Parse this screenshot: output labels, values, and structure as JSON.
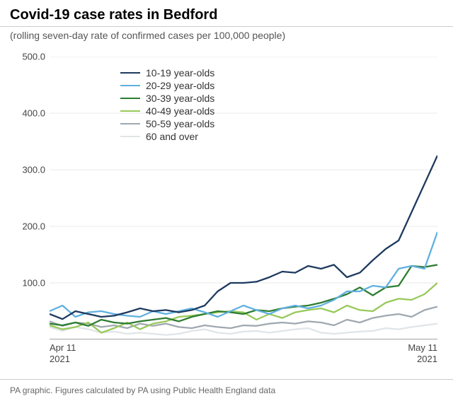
{
  "title": "Covid-19 case rates in Bedford",
  "subtitle": "(rolling seven-day rate of confirmed cases per 100,000 people)",
  "footer": "PA graphic. Figures calculated by PA using Public Health England data",
  "chart": {
    "type": "line",
    "background_color": "#ffffff",
    "grid_color": "#e8e8e8",
    "axis_color": "#444444",
    "title_fontsize": 20,
    "subtitle_fontsize": 14,
    "tick_fontsize": 13,
    "legend_fontsize": 14,
    "footer_fontsize": 12,
    "ylim": [
      0,
      500
    ],
    "yticks": [
      100.0,
      200.0,
      300.0,
      400.0,
      500.0
    ],
    "ytick_labels": [
      "100.0",
      "200.0",
      "300.0",
      "400.0",
      "500.0"
    ],
    "x_count": 31,
    "xtick_positions": [
      0,
      30
    ],
    "xtick_labels": [
      "Apr 11\n2021",
      "May 11\n2021"
    ],
    "line_width": 2.3,
    "series": [
      {
        "label": "10-19 year-olds",
        "color": "#1e3a5f",
        "values": [
          45,
          36,
          50,
          45,
          40,
          42,
          48,
          55,
          50,
          52,
          48,
          52,
          60,
          85,
          100,
          100,
          102,
          110,
          120,
          118,
          130,
          125,
          132,
          110,
          118,
          140,
          160,
          175,
          225,
          275,
          325
        ]
      },
      {
        "label": "20-29 year-olds",
        "color": "#5fb0e0",
        "values": [
          50,
          60,
          40,
          48,
          50,
          45,
          42,
          40,
          50,
          45,
          50,
          55,
          48,
          40,
          50,
          60,
          52,
          45,
          55,
          60,
          55,
          60,
          70,
          85,
          85,
          95,
          92,
          125,
          130,
          125,
          190
        ]
      },
      {
        "label": "30-39 year-olds",
        "color": "#2e7d32",
        "values": [
          28,
          25,
          30,
          24,
          35,
          30,
          28,
          32,
          35,
          38,
          32,
          40,
          45,
          50,
          48,
          45,
          52,
          50,
          55,
          58,
          60,
          65,
          72,
          80,
          92,
          78,
          92,
          95,
          130,
          128,
          132
        ]
      },
      {
        "label": "40-49 year-olds",
        "color": "#98c95a",
        "values": [
          25,
          18,
          22,
          30,
          12,
          20,
          30,
          18,
          28,
          32,
          40,
          42,
          45,
          48,
          50,
          48,
          35,
          45,
          38,
          48,
          52,
          55,
          48,
          60,
          52,
          50,
          65,
          72,
          70,
          80,
          100
        ]
      },
      {
        "label": "50-59 year-olds",
        "color": "#a0a8b0",
        "values": [
          32,
          24,
          30,
          28,
          22,
          25,
          20,
          28,
          24,
          28,
          22,
          20,
          25,
          22,
          20,
          25,
          24,
          28,
          30,
          28,
          32,
          30,
          25,
          35,
          30,
          38,
          42,
          45,
          40,
          52,
          58
        ]
      },
      {
        "label": "60 and over",
        "color": "#e0e5e8",
        "values": [
          22,
          15,
          22,
          18,
          12,
          14,
          10,
          12,
          10,
          8,
          10,
          15,
          18,
          12,
          10,
          14,
          15,
          12,
          15,
          18,
          20,
          12,
          10,
          12,
          14,
          15,
          20,
          18,
          22,
          25,
          28
        ]
      }
    ]
  }
}
